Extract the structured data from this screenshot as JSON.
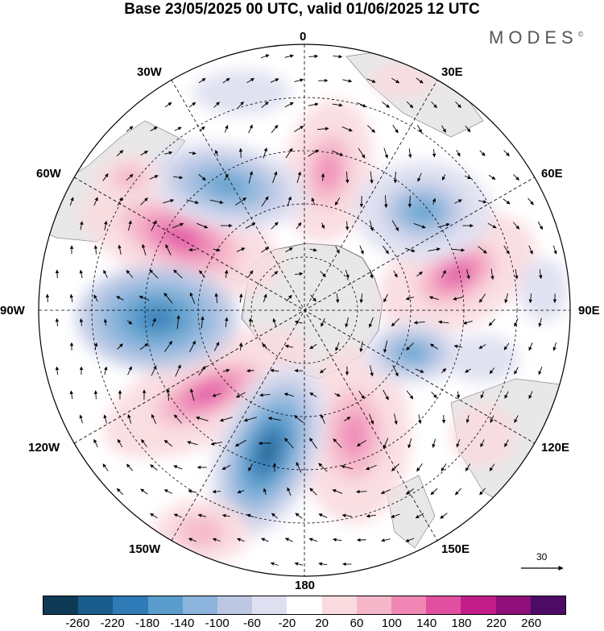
{
  "header": {
    "title": "Base 23/05/2025 00 UTC, valid 01/06/2025 12 UTC",
    "brand": "MODES",
    "brand_mark": "©"
  },
  "map": {
    "projection": "south-polar-stereographic",
    "longitude_labels": {
      "top": "0",
      "top_right": "30E",
      "right_upper": "60E",
      "right": "90E",
      "right_lower": "120E",
      "bottom_right": "150E",
      "bottom": "180",
      "bottom_left": "150W",
      "left_lower": "120W",
      "left": "90W",
      "left_upper": "60W",
      "top_left": "30W"
    },
    "reference_vector_label": "30"
  },
  "colorbar": {
    "colors": [
      "#0f3a56",
      "#1a5c8c",
      "#2f7bb8",
      "#5a9dcc",
      "#8cb4dc",
      "#bcc7e4",
      "#dedff0",
      "#ffffff",
      "#f9dbe0",
      "#f6b6c9",
      "#ef86b4",
      "#e0509f",
      "#c21e8a",
      "#8e1078",
      "#4e0b66"
    ],
    "tick_labels": [
      "-260",
      "-220",
      "-180",
      "-140",
      "-100",
      "-60",
      "-20",
      "20",
      "60",
      "100",
      "140",
      "180",
      "220",
      "260"
    ]
  }
}
